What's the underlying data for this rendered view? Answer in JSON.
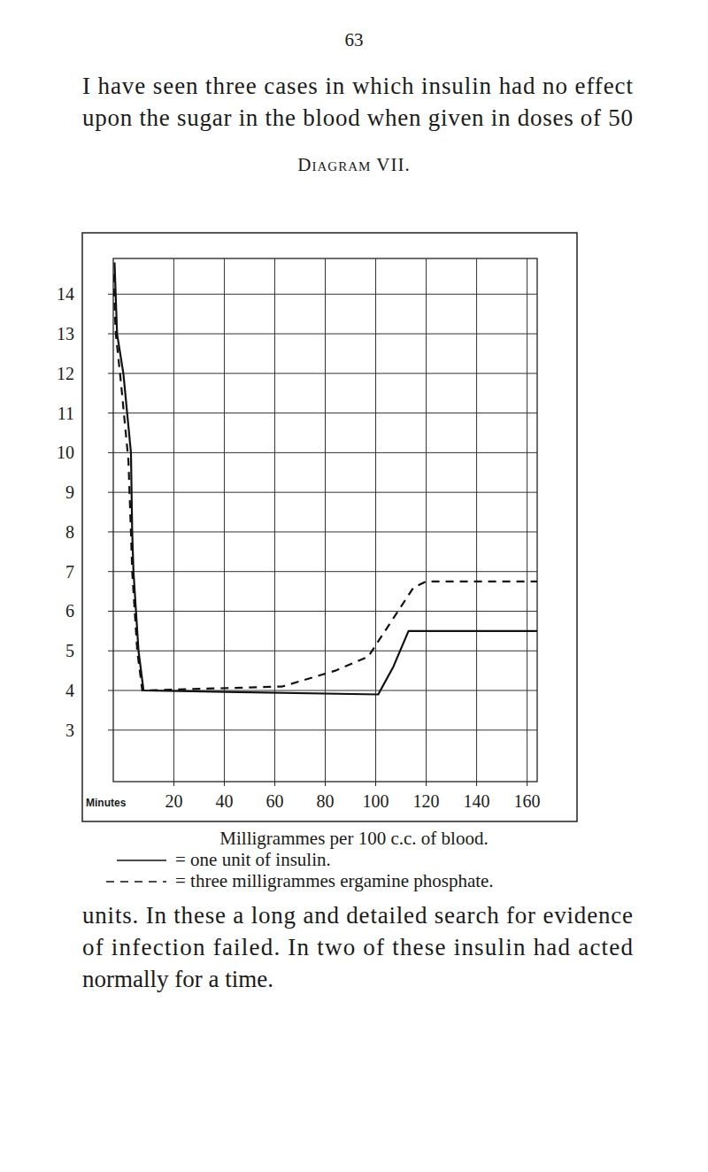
{
  "page_number": "63",
  "text_before": [
    "I have seen three cases in which insulin had no effect",
    "upon the sugar in the blood when given in doses of 50"
  ],
  "figure_title": "Diagram VII.",
  "chart_data": {
    "type": "line",
    "x_label": "Minutes",
    "y_label": "Milligrammes per 100 c.c. of blood.",
    "xlim": [
      -4,
      164
    ],
    "xticks": [
      20,
      40,
      60,
      80,
      100,
      120,
      140,
      160
    ],
    "ylim": [
      1.7,
      14.9
    ],
    "yticks": [
      3,
      4,
      5,
      6,
      7,
      8,
      9,
      10,
      11,
      12,
      13,
      14
    ],
    "grid": true,
    "series": [
      {
        "name": "= one unit of insulin.",
        "color": "#111111",
        "line_style": "solid",
        "x": [
          -3.5,
          -2.5,
          0,
          3,
          3.5,
          4,
          5,
          6,
          8,
          101,
          107,
          113,
          164
        ],
        "values": [
          14.8,
          13,
          12,
          10,
          8,
          7,
          6,
          5,
          4,
          3.9,
          4.6,
          5.5,
          5.5
        ]
      },
      {
        "name": "= three milligrammes ergamine phosphate.",
        "color": "#111111",
        "line_style": "dashed",
        "x": [
          -4,
          -3,
          -1,
          2,
          3,
          3.5,
          4.5,
          5.5,
          7.5,
          63,
          84,
          97,
          115,
          120,
          164
        ],
        "values": [
          14.5,
          13,
          11.8,
          9.8,
          8,
          7,
          6,
          5,
          4,
          4.1,
          4.5,
          4.85,
          6.6,
          6.75,
          6.75
        ]
      }
    ]
  },
  "text_after": [
    "units. In these a long and detailed search for evidence",
    "of infection failed. In two of these insulin had acted",
    "normally for a time."
  ]
}
